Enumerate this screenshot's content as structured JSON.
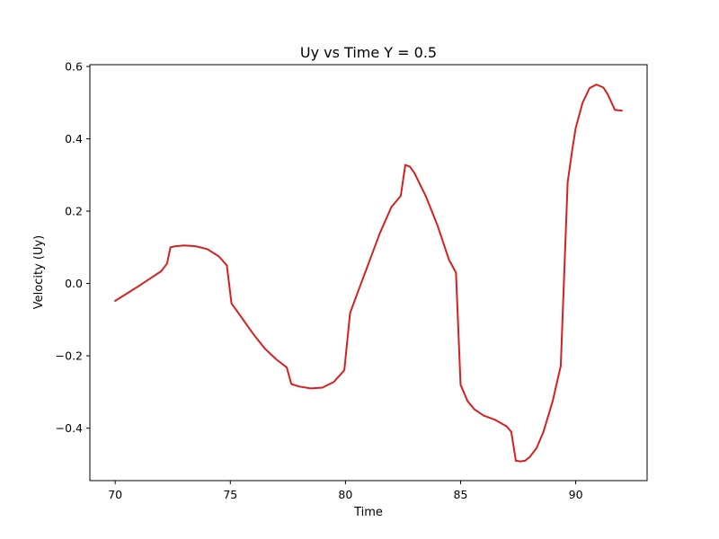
{
  "chart_data": {
    "type": "line",
    "title": "Uy vs Time Y = 0.5",
    "xlabel": "Time",
    "ylabel": "Velocity (Uy)",
    "xlim": [
      68.9,
      93.1
    ],
    "ylim": [
      -0.545,
      0.605
    ],
    "xticks": [
      70,
      75,
      80,
      85,
      90
    ],
    "yticks": [
      -0.4,
      -0.2,
      0.0,
      0.2,
      0.4,
      0.6
    ],
    "xtick_labels": [
      "70",
      "75",
      "80",
      "85",
      "90"
    ],
    "ytick_labels": [
      "−0.4",
      "−0.2",
      "0.0",
      "0.2",
      "0.4",
      "0.6"
    ],
    "grid": false,
    "colors": {
      "line": "#d62020",
      "axes": "#000000",
      "background": "#ffffff"
    },
    "series": [
      {
        "x": [
          70.0,
          70.5,
          71.0,
          71.5,
          72.0,
          72.25,
          72.4,
          72.6,
          73.0,
          73.5,
          74.0,
          74.5,
          74.85,
          75.05,
          75.5,
          76.0,
          76.5,
          77.0,
          77.45,
          77.65,
          78.0,
          78.5,
          79.0,
          79.5,
          79.95,
          80.2,
          80.5,
          81.0,
          81.5,
          82.0,
          82.4,
          82.6,
          82.8,
          83.0,
          83.5,
          84.0,
          84.5,
          84.8,
          85.0,
          85.3,
          85.6,
          86.0,
          86.5,
          87.0,
          87.2,
          87.4,
          87.6,
          87.8,
          88.0,
          88.3,
          88.6,
          89.0,
          89.35,
          89.65,
          89.85,
          90.0,
          90.3,
          90.6,
          90.9,
          91.2,
          91.4,
          91.7,
          92.0
        ],
        "y": [
          -0.048,
          -0.028,
          -0.008,
          0.013,
          0.034,
          0.055,
          0.1,
          0.103,
          0.105,
          0.103,
          0.095,
          0.075,
          0.05,
          -0.055,
          -0.095,
          -0.14,
          -0.18,
          -0.21,
          -0.232,
          -0.278,
          -0.285,
          -0.29,
          -0.288,
          -0.272,
          -0.24,
          -0.082,
          -0.03,
          0.055,
          0.14,
          0.212,
          0.242,
          0.328,
          0.323,
          0.305,
          0.24,
          0.16,
          0.065,
          0.03,
          -0.28,
          -0.325,
          -0.348,
          -0.365,
          -0.377,
          -0.395,
          -0.41,
          -0.49,
          -0.492,
          -0.49,
          -0.48,
          -0.455,
          -0.41,
          -0.325,
          -0.228,
          0.28,
          0.37,
          0.43,
          0.5,
          0.54,
          0.55,
          0.542,
          0.522,
          0.48,
          0.478
        ]
      }
    ]
  }
}
